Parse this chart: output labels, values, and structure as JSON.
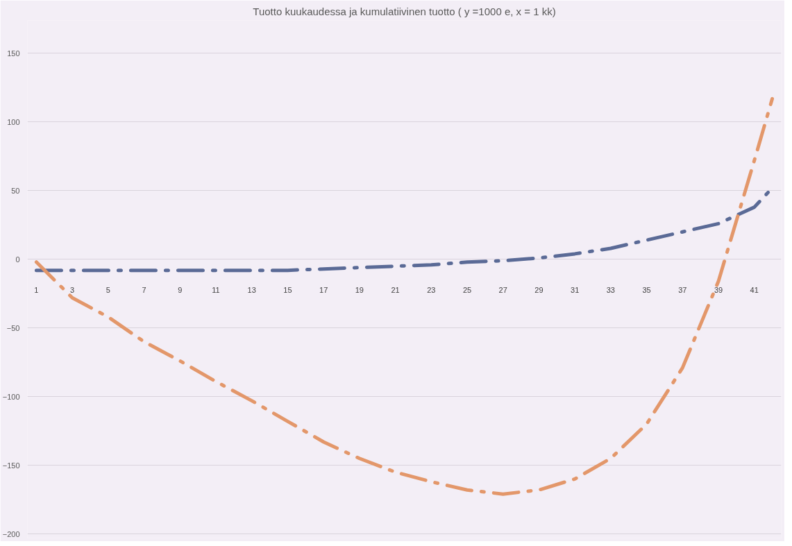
{
  "chart_data": {
    "type": "line",
    "title": "Tuotto kuukaudessa ja kumulatiivinen tuotto ( y =1000 e, x = 1 kk)",
    "xlim": [
      0.5,
      42.5
    ],
    "xticks": [
      1,
      3,
      5,
      7,
      9,
      11,
      13,
      15,
      17,
      19,
      21,
      23,
      25,
      27,
      29,
      31,
      33,
      35,
      37,
      39,
      41
    ],
    "ylim": [
      -203,
      174
    ],
    "yticks": [
      -200,
      -150,
      -100,
      -50,
      0,
      50,
      100,
      150
    ],
    "grid": "y",
    "line_style": "dashdot",
    "series": [
      {
        "color": "#5a6a96",
        "x": [
          1,
          3,
          5,
          7,
          9,
          11,
          13,
          15,
          17,
          19,
          21,
          23,
          25,
          27,
          29,
          31,
          33,
          35,
          37,
          39,
          41,
          42
        ],
        "values": [
          -8,
          -8,
          -8,
          -8,
          -8,
          -8,
          -8,
          -8,
          -7,
          -6,
          -5,
          -4,
          -2,
          -1,
          1,
          4,
          8,
          14,
          20,
          26,
          38,
          52
        ]
      },
      {
        "color": "#e3976a",
        "x": [
          1,
          3,
          5,
          7,
          9,
          11,
          13,
          15,
          17,
          19,
          21,
          23,
          25,
          27,
          29,
          31,
          33,
          35,
          37,
          39,
          41,
          42
        ],
        "values": [
          -2,
          -28,
          -42,
          -60,
          -74,
          -89,
          -103,
          -118,
          -133,
          -145,
          -155,
          -162,
          -168,
          -171,
          -168,
          -160,
          -145,
          -120,
          -79,
          -16,
          72,
          117
        ]
      }
    ]
  }
}
